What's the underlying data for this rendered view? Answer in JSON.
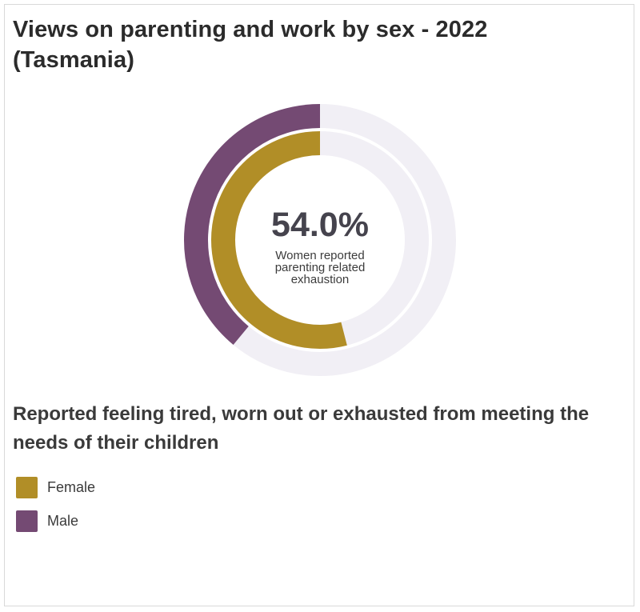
{
  "title": "Views on parenting and work by sex - 2022 (Tasmania)",
  "center": {
    "value": "54.0%",
    "caption": "Women reported parenting related exhaustion"
  },
  "subtitle": "Reported feeling tired, worn out or exhausted from meeting the needs of their children",
  "colors": {
    "female": "#b18e27",
    "male": "#744a73",
    "track": "#f1eff5"
  },
  "chart_data": {
    "type": "donut",
    "unit": "%",
    "series": [
      {
        "name": "Male",
        "value": 39.0,
        "ring": "outer"
      },
      {
        "name": "Female",
        "value": 54.0,
        "ring": "inner"
      }
    ],
    "range": [
      0,
      100
    ]
  },
  "legend": [
    {
      "label": "Female",
      "color": "#b18e27"
    },
    {
      "label": "Male",
      "color": "#744a73"
    }
  ]
}
